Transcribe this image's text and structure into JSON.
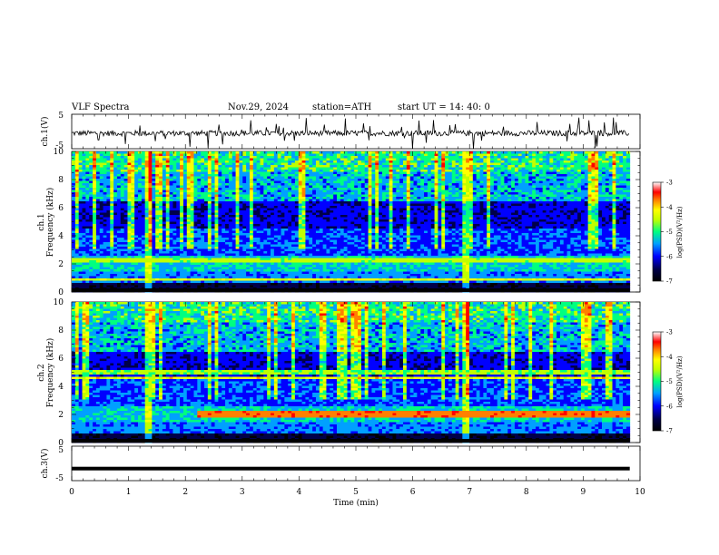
{
  "header": {
    "title": "VLF  Spectra",
    "date": "Nov.29, 2024",
    "station": "station=ATH",
    "start": "start  UT  =   14: 40: 0"
  },
  "chart_data": [
    {
      "type": "line",
      "name": "ch1-waveform",
      "ylabel": "ch.1(V)",
      "ylim": [
        -5,
        5
      ],
      "yticks": [
        "5",
        "-5"
      ],
      "xlim": [
        0,
        10
      ],
      "description_series": "noisy voltage trace around -0.5 V with sharp spikes"
    },
    {
      "type": "heatmap",
      "name": "ch1-spectrogram",
      "ylabel": "ch.1\nFrequency  (kHz)",
      "ylabel_line1": "ch.1",
      "ylabel_line2": "Frequency  (kHz)",
      "ylim": [
        0,
        10
      ],
      "yticks": [
        "0",
        "2",
        "4",
        "6",
        "8",
        "10"
      ],
      "xlim": [
        0,
        10
      ],
      "x_end_min": 9.82,
      "colorbar": {
        "label": "log(PSD)(V²/Hz)",
        "range": [
          -7,
          -3
        ],
        "ticks": [
          "-3",
          "-4",
          "-5",
          "-6",
          "-7"
        ]
      }
    },
    {
      "type": "heatmap",
      "name": "ch2-spectrogram",
      "ylabel_line1": "ch.2",
      "ylabel_line2": "Frequency  (kHz)",
      "ylim": [
        0,
        10
      ],
      "yticks": [
        "0",
        "2",
        "4",
        "6",
        "8",
        "10"
      ],
      "xlim": [
        0,
        10
      ],
      "x_end_min": 9.82,
      "colorbar": {
        "label": "log(PSD)(V²/Hz)",
        "range": [
          -7,
          -3
        ],
        "ticks": [
          "-3",
          "-4",
          "-5",
          "-6",
          "-7"
        ]
      }
    },
    {
      "type": "line",
      "name": "ch3-waveform",
      "ylabel": "ch.3(V)",
      "ylim": [
        -5,
        5
      ],
      "yticks": [
        "5",
        "-5"
      ],
      "xlim": [
        0,
        10
      ],
      "level": -1.5
    }
  ],
  "xaxis": {
    "label": "Time  (min)",
    "ticks": [
      "0",
      "1",
      "2",
      "3",
      "4",
      "5",
      "6",
      "7",
      "8",
      "9",
      "10"
    ]
  },
  "colors": {
    "background": "#ffffff",
    "colormap": [
      "#000000",
      "#00004a",
      "#0000ff",
      "#00a0ff",
      "#00ff80",
      "#c0ff00",
      "#ffff00",
      "#ff8000",
      "#ff0000",
      "#ffffff"
    ]
  }
}
